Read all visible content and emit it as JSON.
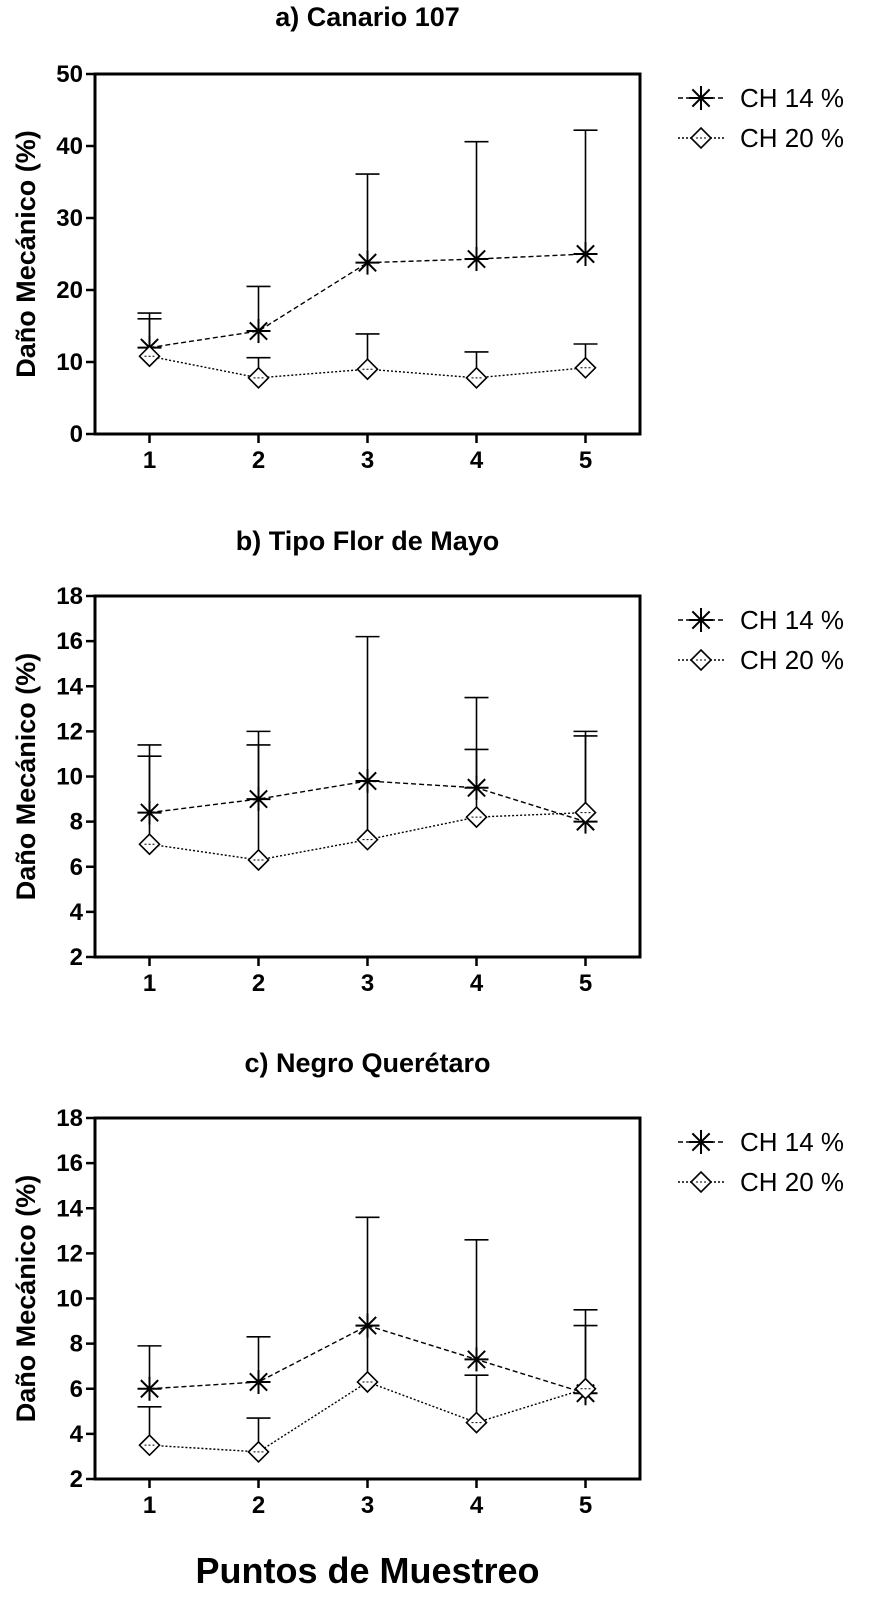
{
  "chart_data": [
    {
      "type": "line",
      "title": "a) Canario 107",
      "ylabel": "Daño Mecánico (%)",
      "xlabel": "",
      "x": [
        1,
        2,
        3,
        4,
        5
      ],
      "xlim": [
        0.5,
        5.5
      ],
      "ylim": [
        0,
        50
      ],
      "yticks": [
        0,
        10,
        20,
        30,
        40,
        50
      ],
      "grid": false,
      "legend_position": "right",
      "series": [
        {
          "name": "CH 14 %",
          "marker": "asterisk",
          "values": [
            12,
            14.3,
            23.8,
            24.3,
            25
          ],
          "error_upper": [
            16.8,
            20.5,
            36.1,
            40.6,
            42.2
          ]
        },
        {
          "name": "CH 20 %",
          "marker": "diamond",
          "values": [
            10.8,
            7.8,
            9,
            7.8,
            9.2
          ],
          "error_upper": [
            16,
            10.6,
            13.9,
            11.4,
            12.5
          ]
        }
      ]
    },
    {
      "type": "line",
      "title": "b) Tipo Flor de Mayo",
      "ylabel": "Daño Mecánico (%)",
      "xlabel": "",
      "x": [
        1,
        2,
        3,
        4,
        5
      ],
      "xlim": [
        0.5,
        5.5
      ],
      "ylim": [
        2,
        18
      ],
      "yticks": [
        2,
        4,
        6,
        8,
        10,
        12,
        14,
        16,
        18
      ],
      "grid": false,
      "legend_position": "right",
      "series": [
        {
          "name": "CH 14 %",
          "marker": "asterisk",
          "values": [
            8.4,
            9,
            9.8,
            9.5,
            8
          ],
          "error_upper": [
            11.4,
            12,
            16.2,
            13.5,
            12
          ]
        },
        {
          "name": "CH 20 %",
          "marker": "diamond",
          "values": [
            7,
            6.3,
            7.2,
            8.2,
            8.4
          ],
          "error_upper": [
            10.9,
            11.4,
            9.8,
            11.2,
            11.8
          ]
        }
      ]
    },
    {
      "type": "line",
      "title": "c) Negro Querétaro",
      "ylabel": "Daño Mecánico (%)",
      "xlabel": "Puntos de Muestreo",
      "x": [
        1,
        2,
        3,
        4,
        5
      ],
      "xlim": [
        0.5,
        5.5
      ],
      "ylim": [
        2,
        18
      ],
      "yticks": [
        2,
        4,
        6,
        8,
        10,
        12,
        14,
        16,
        18
      ],
      "grid": false,
      "legend_position": "right",
      "series": [
        {
          "name": "CH 14 %",
          "marker": "asterisk",
          "values": [
            6,
            6.3,
            8.8,
            7.3,
            5.8
          ],
          "error_upper": [
            7.9,
            8.3,
            13.6,
            12.6,
            9.5
          ]
        },
        {
          "name": "CH 20 %",
          "marker": "diamond",
          "values": [
            3.5,
            3.2,
            6.3,
            4.5,
            6
          ],
          "error_upper": [
            5.2,
            4.7,
            8.8,
            6.6,
            8.8
          ]
        }
      ]
    }
  ]
}
